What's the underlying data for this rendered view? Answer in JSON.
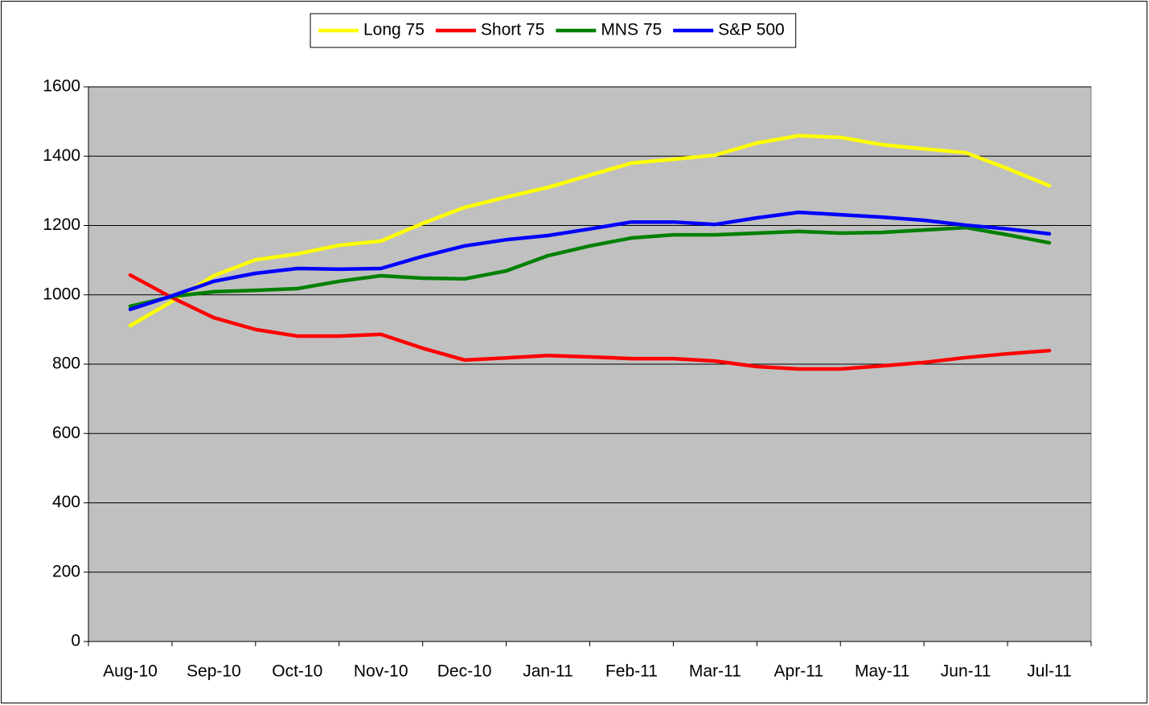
{
  "chart_data": {
    "type": "line",
    "categories": [
      "Aug-10",
      null,
      "Sep-10",
      null,
      "Oct-10",
      null,
      "Nov-10",
      null,
      "Dec-10",
      null,
      "Jan-11",
      null,
      "Feb-11",
      null,
      "Mar-11",
      null,
      "Apr-11",
      null,
      "May-11",
      null,
      "Jun-11",
      null,
      "Jul-11"
    ],
    "series": [
      {
        "name": "Long 75",
        "color": "#ffff00",
        "values": [
          911,
          981,
          1055,
          1101,
          1118,
          1143,
          1155,
          1206,
          1252,
          1282,
          1310,
          1345,
          1380,
          1391,
          1403,
          1438,
          1459,
          1454,
          1433,
          1421,
          1410,
          1364,
          1315
        ]
      },
      {
        "name": "Short 75",
        "color": "#ff0000",
        "values": [
          1057,
          992,
          934,
          900,
          881,
          881,
          886,
          846,
          812,
          818,
          825,
          821,
          816,
          816,
          809,
          793,
          786,
          786,
          795,
          805,
          819,
          830,
          839
        ]
      },
      {
        "name": "MNS 75",
        "color": "#008000",
        "values": [
          967,
          995,
          1009,
          1013,
          1018,
          1039,
          1055,
          1048,
          1046,
          1069,
          1113,
          1141,
          1164,
          1173,
          1173,
          1178,
          1183,
          1178,
          1180,
          1187,
          1194,
          1173,
          1150
        ]
      },
      {
        "name": "S&P 500",
        "color": "#0000ff",
        "values": [
          958,
          997,
          1039,
          1062,
          1076,
          1074,
          1076,
          1111,
          1141,
          1159,
          1171,
          1190,
          1210,
          1210,
          1203,
          1222,
          1238,
          1231,
          1224,
          1215,
          1201,
          1190,
          1176
        ]
      }
    ],
    "ylim": [
      0,
      1600
    ],
    "yticks": [
      0,
      200,
      400,
      600,
      800,
      1000,
      1200,
      1400,
      1600
    ],
    "grid": true,
    "legend": "top",
    "plot_background": "#c0c0c0"
  }
}
